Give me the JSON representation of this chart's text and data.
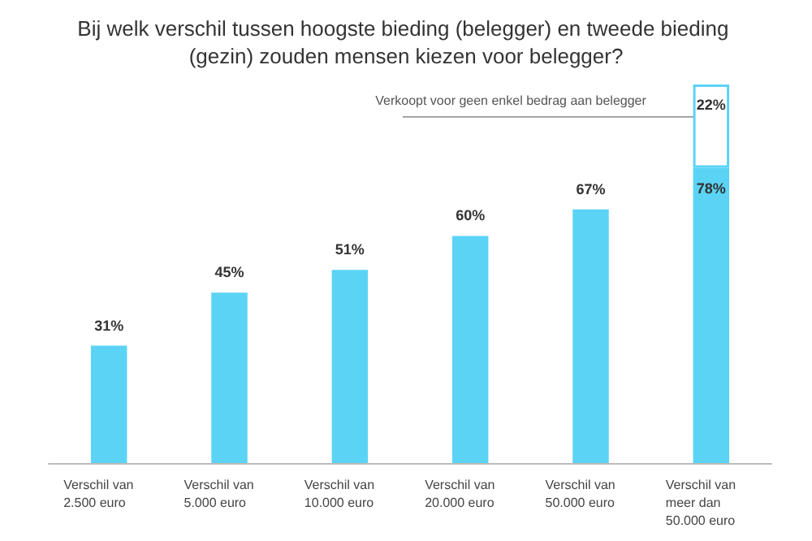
{
  "chart_data": {
    "type": "bar",
    "title": "Bij welk verschil tussen hoogste bieding (belegger) en tweede bieding (gezin) zouden mensen kiezen voor belegger?",
    "stacked": true,
    "categories": [
      "Verschil van\n2.500 euro",
      "Verschil van\n5.000 euro",
      "Verschil van\n10.000 euro",
      "Verschil van\n20.000 euro",
      "Verschil van\n50.000 euro",
      "Verschil van\nmeer dan\n50.000 euro"
    ],
    "series": [
      {
        "color": "#5bd3f5",
        "values": [
          31,
          45,
          51,
          60,
          67,
          78
        ],
        "value_labels": [
          "31%",
          "45%",
          "51%",
          "60%",
          "67%",
          "78%"
        ]
      },
      {
        "color": "#ffffff",
        "values": [
          null,
          null,
          null,
          null,
          null,
          22
        ],
        "value_labels": [
          null,
          null,
          null,
          null,
          null,
          "22%"
        ]
      }
    ],
    "annotations": [
      "Verkoopt voor geen enkel bedrag aan belegger"
    ]
  }
}
